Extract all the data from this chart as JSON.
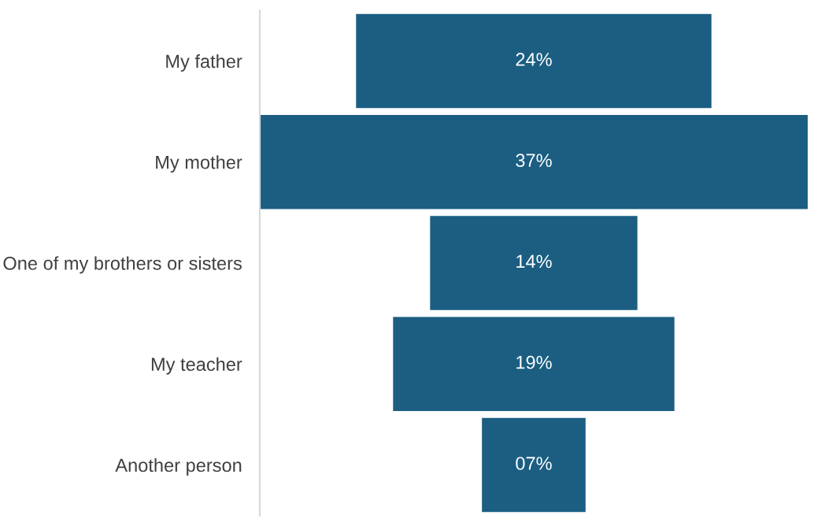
{
  "chart_data": {
    "type": "other",
    "categories": [
      "My father",
      "My mother",
      "One of my brothers or sisters",
      "My teacher",
      "Another person"
    ],
    "values": [
      24,
      37,
      14,
      19,
      7
    ],
    "value_labels": [
      "24%",
      "37%",
      "14%",
      "19%",
      "07%"
    ],
    "color": "#1b5e82"
  }
}
